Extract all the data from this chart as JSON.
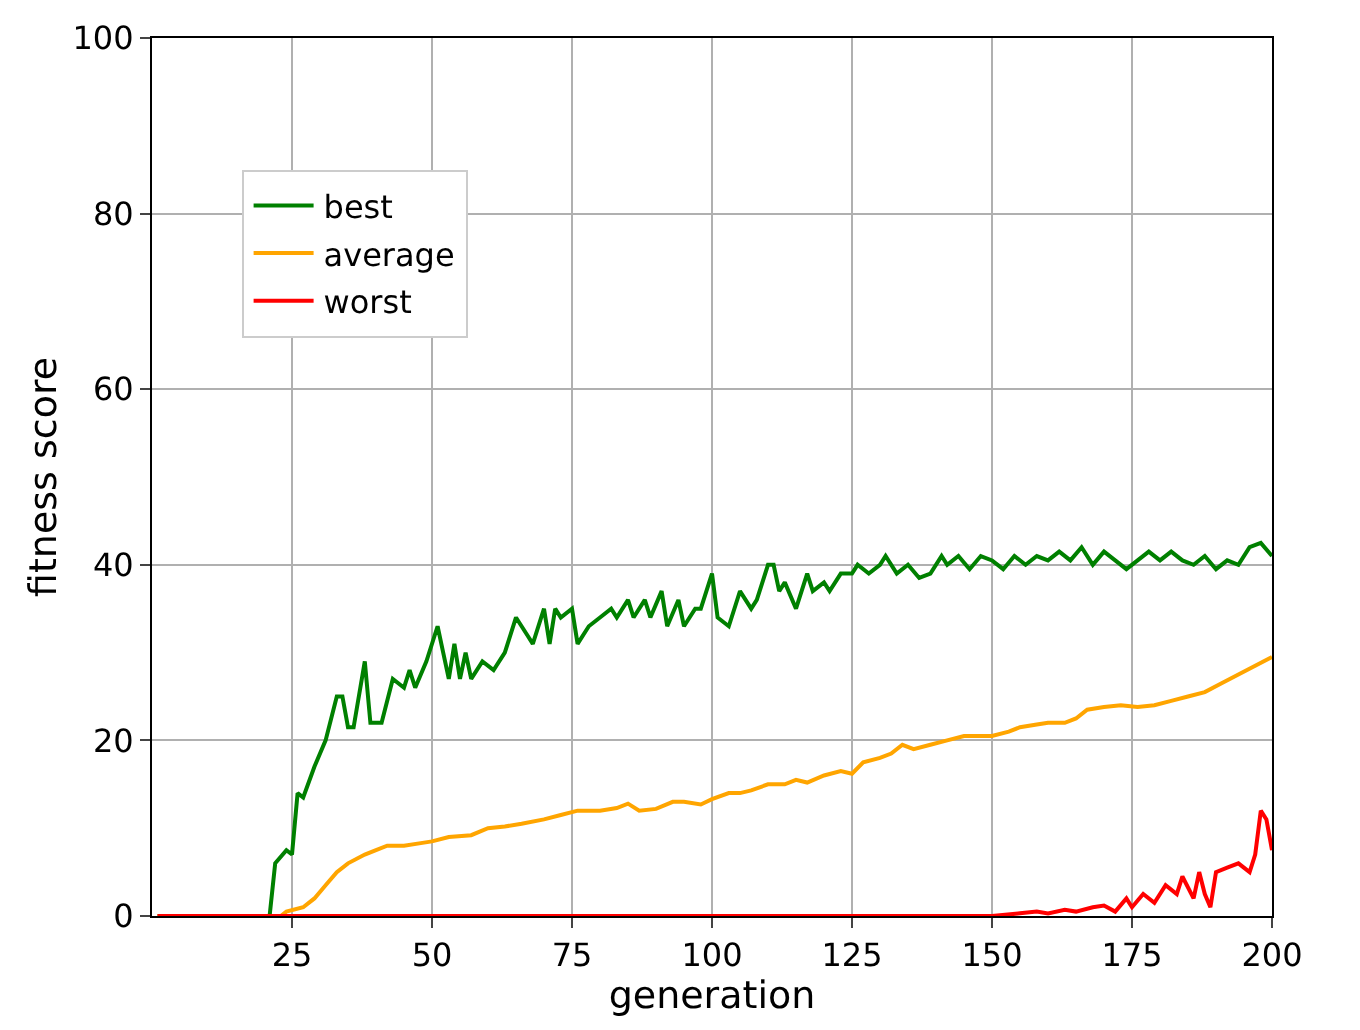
{
  "chart_data": {
    "type": "line",
    "xlabel": "generation",
    "ylabel": "fitness score",
    "xlim": [
      0,
      200
    ],
    "ylim": [
      0,
      100
    ],
    "xticks": [
      25,
      50,
      75,
      100,
      125,
      150,
      175,
      200
    ],
    "yticks": [
      0,
      20,
      40,
      60,
      80,
      100
    ],
    "grid": true,
    "legend": "top left",
    "line_style": "solid",
    "marker": "none",
    "series": [
      {
        "name": "best",
        "color": "#008000",
        "x": [
          1,
          21,
          22,
          24,
          25,
          26,
          27,
          29,
          31,
          33,
          34,
          35,
          36,
          38,
          39,
          41,
          43,
          45,
          46,
          47,
          49,
          51,
          52,
          53,
          54,
          55,
          56,
          57,
          59,
          61,
          63,
          65,
          67,
          68,
          70,
          71,
          72,
          73,
          75,
          76,
          78,
          80,
          82,
          83,
          85,
          86,
          88,
          89,
          91,
          92,
          94,
          95,
          97,
          98,
          100,
          101,
          103,
          105,
          107,
          108,
          110,
          111,
          112,
          113,
          115,
          117,
          118,
          120,
          121,
          123,
          125,
          126,
          128,
          130,
          131,
          133,
          135,
          137,
          139,
          141,
          142,
          144,
          146,
          148,
          150,
          152,
          154,
          156,
          158,
          160,
          162,
          164,
          166,
          168,
          170,
          172,
          174,
          176,
          178,
          180,
          182,
          184,
          186,
          188,
          190,
          192,
          194,
          196,
          198,
          200
        ],
        "values": [
          0,
          0,
          6,
          7.5,
          7,
          14,
          13.5,
          17,
          20,
          25,
          25,
          21.5,
          21.5,
          29,
          22,
          22,
          27,
          26,
          28,
          26,
          29,
          33,
          30,
          27,
          31,
          27,
          30,
          27,
          29,
          28,
          30,
          34,
          32,
          31,
          35,
          31,
          35,
          34,
          35,
          31,
          33,
          34,
          35,
          34,
          36,
          34,
          36,
          34,
          37,
          33,
          36,
          33,
          35,
          35,
          39,
          34,
          33,
          37,
          35,
          36,
          40,
          40,
          37,
          38,
          35,
          39,
          37,
          38,
          37,
          39,
          39,
          40,
          39,
          40,
          41,
          39,
          40,
          38.5,
          39,
          41,
          40,
          41,
          39.5,
          41,
          40.5,
          39.5,
          41,
          40,
          41,
          40.5,
          41.5,
          40.5,
          42,
          40,
          41.5,
          40.5,
          39.5,
          40.5,
          41.5,
          40.5,
          41.5,
          40.5,
          40,
          41,
          39.5,
          40.5,
          40,
          42,
          42.5,
          41
        ]
      },
      {
        "name": "average",
        "color": "#ffa500",
        "x": [
          1,
          23,
          24,
          27,
          29,
          31,
          33,
          35,
          38,
          40,
          42,
          45,
          48,
          50,
          53,
          57,
          60,
          63,
          66,
          70,
          73,
          76,
          80,
          83,
          85,
          87,
          90,
          93,
          95,
          98,
          100,
          103,
          105,
          107,
          110,
          113,
          115,
          117,
          120,
          123,
          125,
          127,
          130,
          132,
          134,
          136,
          139,
          142,
          145,
          148,
          150,
          153,
          155,
          158,
          160,
          163,
          165,
          167,
          170,
          173,
          176,
          179,
          182,
          185,
          188,
          191,
          194,
          197,
          200
        ],
        "values": [
          0,
          0,
          0.5,
          1,
          2,
          3.5,
          5,
          6,
          7,
          7.5,
          8,
          8,
          8.3,
          8.5,
          9,
          9.2,
          10,
          10.2,
          10.5,
          11,
          11.5,
          12,
          12,
          12.3,
          12.8,
          12,
          12.2,
          13,
          13,
          12.7,
          13.3,
          14,
          14,
          14.3,
          15,
          15,
          15.5,
          15.2,
          16,
          16.5,
          16.2,
          17.5,
          18,
          18.5,
          19.5,
          19,
          19.5,
          20,
          20.5,
          20.5,
          20.5,
          21,
          21.5,
          21.8,
          22,
          22,
          22.5,
          23.5,
          23.8,
          24,
          23.8,
          24,
          24.5,
          25,
          25.5,
          26.5,
          27.5,
          28.5,
          29.5
        ]
      },
      {
        "name": "worst",
        "color": "#ff0000",
        "x": [
          1,
          150,
          155,
          158,
          160,
          163,
          165,
          168,
          170,
          172,
          174,
          175,
          177,
          179,
          181,
          183,
          184,
          186,
          187,
          188,
          189,
          190,
          192,
          194,
          196,
          197,
          198,
          199,
          200
        ],
        "values": [
          0,
          0,
          0.3,
          0.5,
          0.3,
          0.7,
          0.5,
          1,
          1.2,
          0.5,
          2,
          1,
          2.5,
          1.5,
          3.5,
          2.5,
          4.5,
          2,
          5,
          2.5,
          1,
          5,
          5.5,
          6,
          5,
          7,
          12,
          11,
          7.5
        ]
      }
    ]
  }
}
